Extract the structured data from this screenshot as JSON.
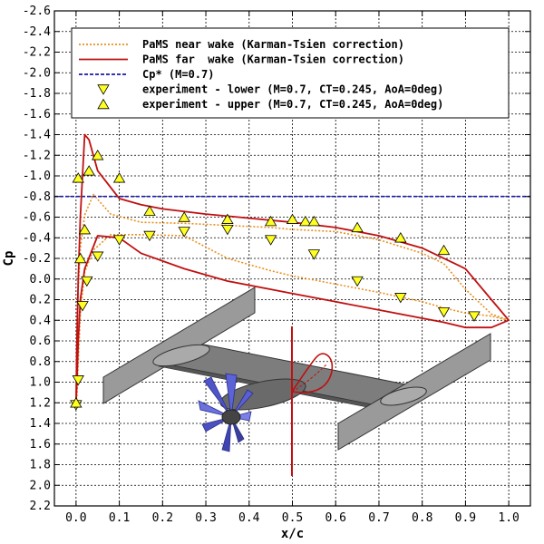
{
  "chart_data": {
    "type": "line",
    "xlabel": "x/c",
    "ylabel": "Cp",
    "xlim": [
      -0.05,
      1.05
    ],
    "ylim": [
      -2.6,
      2.2
    ],
    "y_inverted": true,
    "x_ticks": [
      "0.0",
      "0.1",
      "0.2",
      "0.3",
      "0.4",
      "0.5",
      "0.6",
      "0.7",
      "0.8",
      "0.9",
      "1.0"
    ],
    "y_ticks": [
      "-2.6",
      "-2.4",
      "-2.2",
      "-2.0",
      "-1.8",
      "-1.6",
      "-1.4",
      "-1.2",
      "-1.0",
      "-0.8",
      "-0.6",
      "-0.4",
      "-0.2",
      "0.0",
      "0.2",
      "0.4",
      "0.6",
      "0.8",
      "1.0",
      "1.2",
      "1.4",
      "1.6",
      "1.8",
      "2.0",
      "2.2"
    ],
    "grid": true,
    "legend_position": "top",
    "colors": {
      "near": "#e8901e",
      "far": "#c01010",
      "cpstar": "#1a1aa8",
      "marker_fill": "#ffff22"
    },
    "series": [
      {
        "name": "PaMS near wake (Karman-Tsien correction)",
        "style": "dotted",
        "x": [
          1.0,
          0.96,
          0.9,
          0.85,
          0.8,
          0.7,
          0.6,
          0.5,
          0.45,
          0.35,
          0.25,
          0.15,
          0.08,
          0.04,
          0.02,
          0.01,
          0.005,
          0.002,
          0.0,
          0.002,
          0.005,
          0.01,
          0.02,
          0.04,
          0.08,
          0.15,
          0.25,
          0.35,
          0.45,
          0.5,
          0.6,
          0.7,
          0.8,
          0.85,
          0.9,
          0.96,
          1.0
        ],
        "y": [
          0.4,
          0.36,
          0.33,
          0.28,
          0.22,
          0.13,
          0.05,
          -0.03,
          -0.08,
          -0.2,
          -0.42,
          -0.43,
          -0.43,
          -0.28,
          -0.07,
          0.35,
          0.8,
          1.15,
          1.25,
          0.7,
          0.1,
          -0.3,
          -0.62,
          -0.82,
          -0.63,
          -0.55,
          -0.54,
          -0.52,
          -0.5,
          -0.48,
          -0.46,
          -0.38,
          -0.25,
          -0.15,
          0.1,
          0.34,
          0.4
        ]
      },
      {
        "name": "PaMS far  wake (Karman-Tsien correction)",
        "style": "solid",
        "x": [
          1.0,
          0.96,
          0.9,
          0.85,
          0.8,
          0.7,
          0.6,
          0.5,
          0.45,
          0.35,
          0.25,
          0.15,
          0.1,
          0.05,
          0.02,
          0.01,
          0.005,
          0.002,
          0.0,
          0.002,
          0.005,
          0.01,
          0.02,
          0.03,
          0.05,
          0.1,
          0.15,
          0.2,
          0.3,
          0.4,
          0.5,
          0.6,
          0.7,
          0.8,
          0.9,
          0.96,
          1.0
        ],
        "y": [
          0.4,
          0.47,
          0.47,
          0.42,
          0.38,
          0.3,
          0.22,
          0.14,
          0.1,
          0.02,
          -0.1,
          -0.25,
          -0.4,
          -0.42,
          -0.1,
          0.2,
          0.6,
          1.0,
          1.2,
          0.6,
          0.0,
          -0.6,
          -1.4,
          -1.35,
          -1.05,
          -0.78,
          -0.72,
          -0.68,
          -0.63,
          -0.59,
          -0.55,
          -0.5,
          -0.42,
          -0.3,
          -0.1,
          0.2,
          0.4
        ]
      },
      {
        "name": "Cp* (M=0.7)",
        "style": "dashed",
        "x": [
          -0.05,
          1.05
        ],
        "y": [
          -0.8,
          -0.8
        ]
      },
      {
        "name": "experiment - lower (M=0.7, CT=0.245, AoA=0deg)",
        "marker": "triangle-down",
        "x": [
          0.0,
          0.005,
          0.015,
          0.025,
          0.05,
          0.1,
          0.17,
          0.25,
          0.35,
          0.45,
          0.55,
          0.65,
          0.75,
          0.85,
          0.92
        ],
        "y": [
          1.22,
          0.98,
          0.26,
          0.02,
          -0.22,
          -0.38,
          -0.42,
          -0.46,
          -0.48,
          -0.38,
          -0.24,
          0.02,
          0.18,
          0.32,
          0.36
        ]
      },
      {
        "name": "experiment - upper (M=0.7, CT=0.245, AoA=0deg)",
        "marker": "triangle-up",
        "x": [
          0.0,
          0.005,
          0.01,
          0.02,
          0.03,
          0.05,
          0.1,
          0.17,
          0.25,
          0.35,
          0.45,
          0.5,
          0.53,
          0.55,
          0.65,
          0.75,
          0.85
        ],
        "y": [
          1.2,
          -0.98,
          -0.2,
          -0.48,
          -1.05,
          -1.2,
          -0.98,
          -0.66,
          -0.6,
          -0.58,
          -0.56,
          -0.58,
          -0.56,
          -0.56,
          -0.5,
          -0.4,
          -0.28
        ]
      }
    ]
  }
}
